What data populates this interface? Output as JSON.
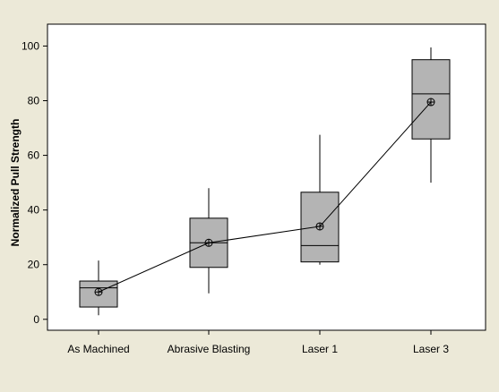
{
  "chart_data": {
    "type": "boxplot",
    "title": "",
    "xlabel": "",
    "ylabel": "Normalized Pull Strength",
    "ylim": [
      -4,
      108
    ],
    "yticks": [
      0,
      20,
      40,
      60,
      80,
      100
    ],
    "categories": [
      "As Machined",
      "Abrasive Blasting",
      "Laser 1",
      "Laser 3"
    ],
    "boxes": [
      {
        "category": "As Machined",
        "whisker_low": 1.5,
        "q1": 4.5,
        "median": 11.5,
        "q3": 14,
        "whisker_high": 21.5,
        "mean": 10
      },
      {
        "category": "Abrasive Blasting",
        "whisker_low": 9.5,
        "q1": 19,
        "median": 28,
        "q3": 37,
        "whisker_high": 48,
        "mean": 28
      },
      {
        "category": "Laser 1",
        "whisker_low": 20,
        "q1": 21,
        "median": 27,
        "q3": 46.5,
        "whisker_high": 67.5,
        "mean": 34
      },
      {
        "category": "Laser 3",
        "whisker_low": 50,
        "q1": 66,
        "median": 82.5,
        "q3": 95,
        "whisker_high": 99.5,
        "mean": 79.5
      }
    ],
    "mean_line": true,
    "grid": false,
    "colors": {
      "box_fill": "#b4b4b4",
      "stroke": "#000000",
      "plot_bg": "#ffffff",
      "outer_bg": "#ece9d8"
    }
  }
}
